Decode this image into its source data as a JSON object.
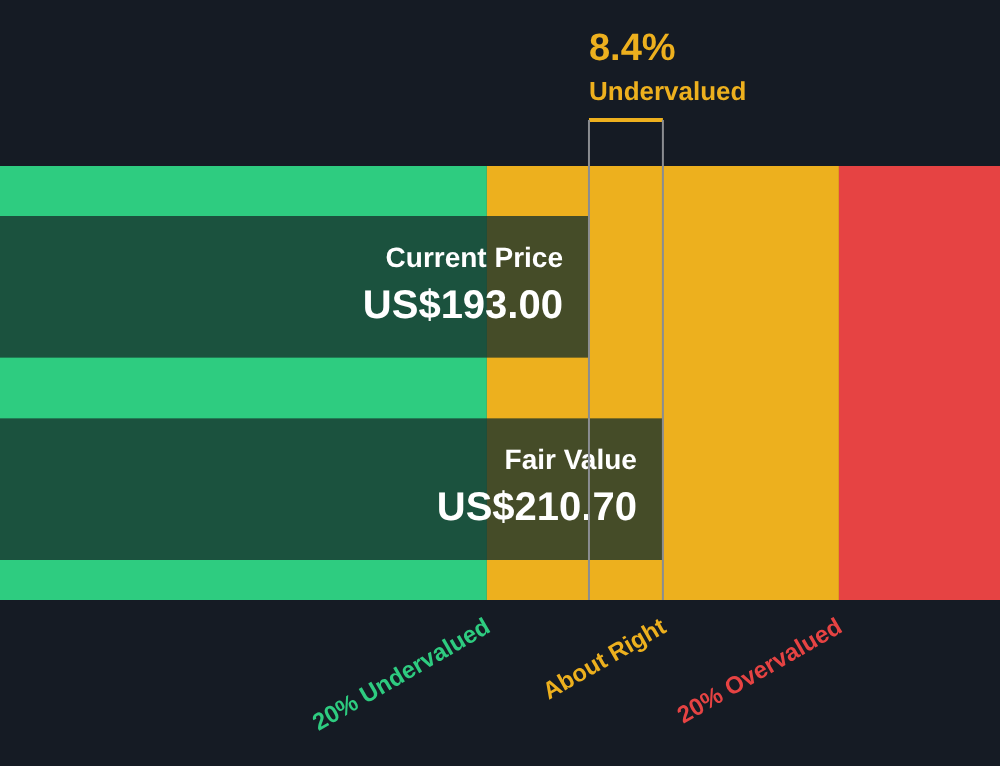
{
  "chart_data": {
    "type": "bar",
    "orientation": "horizontal",
    "categories": [
      "Current Price",
      "Fair Value"
    ],
    "values": [
      193.0,
      210.7
    ],
    "value_labels": [
      "US$193.00",
      "US$210.70"
    ],
    "color": "#16302b",
    "xlim": [
      52,
      291.4
    ],
    "tick_labels": false,
    "bands": [
      {
        "axis": "x",
        "from": 52,
        "to": 168.56,
        "label": "20% Undervalued",
        "color": "#2ecc80"
      },
      {
        "axis": "x",
        "from": 168.56,
        "to": 252.84,
        "label": "About Right",
        "color": "#edb01e"
      },
      {
        "axis": "x",
        "from": 252.84,
        "to": 291.4,
        "label": "20% Overvalued",
        "color": "#e64343"
      }
    ],
    "ref_lines": [
      {
        "axis": "x",
        "value": 193.0,
        "color": "#8a8d91"
      },
      {
        "axis": "x",
        "value": 210.7,
        "color": "#8a8d91"
      }
    ],
    "annotations": [
      "8.4%",
      "Undervalued"
    ]
  }
}
